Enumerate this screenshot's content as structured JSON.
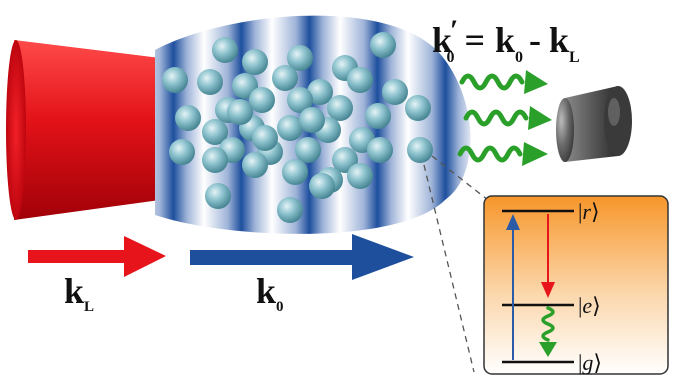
{
  "labels": {
    "wavevector_relation": {
      "k_prime": "k",
      "prime": "′",
      "k_prime_sub": "0",
      "equals": "=",
      "k0": "k",
      "k0_sub": "0",
      "minus": "-",
      "kl": "k",
      "kl_sub": "L"
    },
    "laser_wavevector": {
      "main": "k",
      "sub": "L"
    },
    "cloud_wavevector": {
      "main": "k",
      "sub": "0"
    }
  },
  "levels": {
    "r": {
      "left": "|",
      "letter": "r",
      "right": "⟩"
    },
    "e": {
      "left": "|",
      "letter": "e",
      "right": "⟩"
    },
    "g": {
      "left": "|",
      "letter": "g",
      "right": "⟩"
    }
  },
  "colors": {
    "laser_red": "#e8141b",
    "beam_blue": "#1d4f9c",
    "emission_green": "#2aa02a",
    "atom": "#7fb6c3",
    "inset_orange": "#f79a2e",
    "level_line": "#111111",
    "detector": "#555555"
  }
}
